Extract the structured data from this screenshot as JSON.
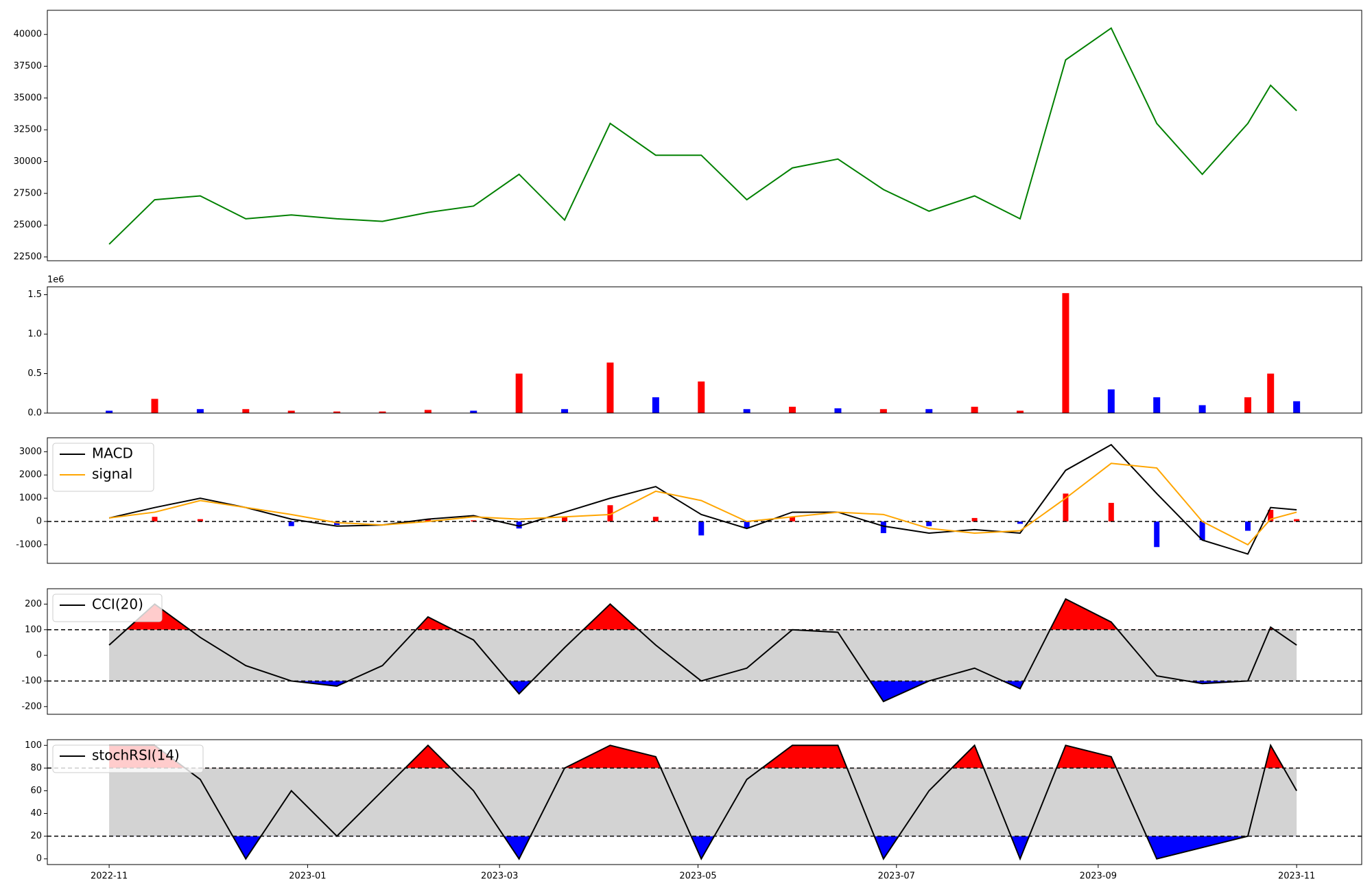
{
  "chart_data": [
    {
      "type": "line",
      "x": [
        "2022-11-01",
        "2022-11-15",
        "2022-11-29",
        "2022-12-13",
        "2022-12-27",
        "2023-01-10",
        "2023-01-24",
        "2023-02-07",
        "2023-02-21",
        "2023-03-07",
        "2023-03-21",
        "2023-04-04",
        "2023-04-18",
        "2023-05-02",
        "2023-05-16",
        "2023-05-30",
        "2023-06-13",
        "2023-06-27",
        "2023-07-11",
        "2023-07-25",
        "2023-08-08",
        "2023-08-22",
        "2023-09-05",
        "2023-09-19",
        "2023-10-03",
        "2023-10-17",
        "2023-10-24",
        "2023-11-01"
      ],
      "xlim": [
        "2022-10-13",
        "2023-11-21"
      ],
      "series": [
        {
          "name": "close",
          "color": "#008000",
          "values": [
            23500,
            27000,
            27300,
            25500,
            25800,
            25500,
            25300,
            26000,
            26500,
            29000,
            25400,
            33000,
            30500,
            30500,
            27000,
            29500,
            30200,
            27800,
            26100,
            27300,
            25500,
            38000,
            40500,
            33000,
            29000,
            33000,
            36000,
            34000
          ]
        }
      ],
      "ylim": [
        22200,
        41900
      ],
      "yticks": [
        22500,
        25000,
        27500,
        30000,
        32500,
        35000,
        37500,
        40000
      ]
    },
    {
      "type": "bar",
      "x": [
        "2022-11-01",
        "2022-11-15",
        "2022-11-29",
        "2022-12-13",
        "2022-12-27",
        "2023-01-10",
        "2023-01-24",
        "2023-02-07",
        "2023-02-21",
        "2023-03-07",
        "2023-03-21",
        "2023-04-04",
        "2023-04-18",
        "2023-05-02",
        "2023-05-16",
        "2023-05-30",
        "2023-06-13",
        "2023-06-27",
        "2023-07-11",
        "2023-07-25",
        "2023-08-08",
        "2023-08-22",
        "2023-09-05",
        "2023-09-19",
        "2023-10-03",
        "2023-10-17",
        "2023-10-24",
        "2023-11-01"
      ],
      "xlim": [
        "2022-10-13",
        "2023-11-21"
      ],
      "values": [
        0.03,
        0.18,
        0.05,
        0.05,
        0.03,
        0.02,
        0.02,
        0.04,
        0.03,
        0.5,
        0.05,
        0.64,
        0.2,
        0.4,
        0.05,
        0.08,
        0.06,
        0.05,
        0.05,
        0.08,
        0.03,
        1.52,
        0.3,
        0.2,
        0.1,
        0.2,
        0.5,
        0.15
      ],
      "bar_colors": [
        "#0000ff",
        "#ff0000",
        "#0000ff",
        "#ff0000",
        "#ff0000",
        "#ff0000",
        "#ff0000",
        "#ff0000",
        "#0000ff",
        "#ff0000",
        "#0000ff",
        "#ff0000",
        "#0000ff",
        "#ff0000",
        "#0000ff",
        "#ff0000",
        "#0000ff",
        "#ff0000",
        "#0000ff",
        "#ff0000",
        "#ff0000",
        "#ff0000",
        "#0000ff",
        "#0000ff",
        "#0000ff",
        "#ff0000",
        "#ff0000",
        "#0000ff"
      ],
      "offset_label": "1e6",
      "ylim": [
        0,
        1.6
      ],
      "yticks": [
        {
          "value": 0,
          "label": "0.0"
        },
        {
          "value": 0.5,
          "label": "0.5"
        },
        {
          "value": 1,
          "label": "1.0"
        },
        {
          "value": 1.5,
          "label": "1.5"
        }
      ]
    },
    {
      "type": "macd",
      "x": [
        "2022-11-01",
        "2022-11-15",
        "2022-11-29",
        "2022-12-13",
        "2022-12-27",
        "2023-01-10",
        "2023-01-24",
        "2023-02-07",
        "2023-02-21",
        "2023-03-07",
        "2023-03-21",
        "2023-04-04",
        "2023-04-18",
        "2023-05-02",
        "2023-05-16",
        "2023-05-30",
        "2023-06-13",
        "2023-06-27",
        "2023-07-11",
        "2023-07-25",
        "2023-08-08",
        "2023-08-22",
        "2023-09-05",
        "2023-09-19",
        "2023-10-03",
        "2023-10-17",
        "2023-10-24",
        "2023-11-01"
      ],
      "xlim": [
        "2022-10-13",
        "2023-11-21"
      ],
      "series": [
        {
          "name": "MACD",
          "color": "#000000",
          "values": [
            150,
            600,
            1000,
            600,
            100,
            -200,
            -150,
            100,
            250,
            -200,
            400,
            1000,
            1500,
            300,
            -300,
            400,
            400,
            -200,
            -500,
            -350,
            -500,
            2200,
            3300,
            1200,
            -800,
            -1400,
            600,
            500
          ]
        },
        {
          "name": "signal",
          "color": "#ffa500",
          "values": [
            150,
            400,
            900,
            600,
            300,
            -50,
            -150,
            0,
            200,
            100,
            200,
            300,
            1300,
            900,
            0,
            200,
            400,
            300,
            -300,
            -500,
            -400,
            1000,
            2500,
            2300,
            0,
            -1000,
            100,
            400
          ]
        }
      ],
      "histogram": [
        0,
        200,
        100,
        0,
        -200,
        -150,
        0,
        100,
        50,
        -300,
        200,
        700,
        200,
        -600,
        -300,
        200,
        0,
        -500,
        -200,
        150,
        -100,
        1200,
        800,
        -1100,
        -800,
        -400,
        500,
        100
      ],
      "pos_color": "#ff0000",
      "neg_color": "#0000ff",
      "zero_line": 0,
      "ylim": [
        -1800,
        3600
      ],
      "yticks": [
        -1000,
        0,
        1000,
        2000,
        3000
      ]
    },
    {
      "type": "oscillator",
      "x": [
        "2022-11-01",
        "2022-11-15",
        "2022-11-29",
        "2022-12-13",
        "2022-12-27",
        "2023-01-10",
        "2023-01-24",
        "2023-02-07",
        "2023-02-21",
        "2023-03-07",
        "2023-03-21",
        "2023-04-04",
        "2023-04-18",
        "2023-05-02",
        "2023-05-16",
        "2023-05-30",
        "2023-06-13",
        "2023-06-27",
        "2023-07-11",
        "2023-07-25",
        "2023-08-08",
        "2023-08-22",
        "2023-09-05",
        "2023-09-19",
        "2023-10-03",
        "2023-10-17",
        "2023-10-24",
        "2023-11-01"
      ],
      "xlim": [
        "2022-10-13",
        "2023-11-21"
      ],
      "series": [
        {
          "name": "CCI(20)",
          "color": "#000000",
          "values": [
            40,
            200,
            70,
            -40,
            -100,
            -120,
            -40,
            150,
            60,
            -150,
            30,
            200,
            40,
            -100,
            -50,
            100,
            90,
            -180,
            -100,
            -50,
            -130,
            220,
            130,
            -80,
            -110,
            -100,
            110,
            40
          ]
        }
      ],
      "upper": 100,
      "lower": -100,
      "upper_color": "#ff0000",
      "lower_color": "#0000ff",
      "band_color": "#d3d3d3",
      "ylim": [
        -230,
        260
      ],
      "yticks": [
        -200,
        -100,
        0,
        100,
        200
      ]
    },
    {
      "type": "oscillator",
      "x": [
        "2022-11-01",
        "2022-11-15",
        "2022-11-29",
        "2022-12-13",
        "2022-12-27",
        "2023-01-10",
        "2023-01-24",
        "2023-02-07",
        "2023-02-21",
        "2023-03-07",
        "2023-03-21",
        "2023-04-04",
        "2023-04-18",
        "2023-05-02",
        "2023-05-16",
        "2023-05-30",
        "2023-06-13",
        "2023-06-27",
        "2023-07-11",
        "2023-07-25",
        "2023-08-08",
        "2023-08-22",
        "2023-09-05",
        "2023-09-19",
        "2023-10-03",
        "2023-10-17",
        "2023-10-24",
        "2023-11-01"
      ],
      "xlim": [
        "2022-10-13",
        "2023-11-21"
      ],
      "series": [
        {
          "name": "stochRSI(14)",
          "color": "#000000",
          "values": [
            100,
            100,
            70,
            0,
            60,
            20,
            60,
            100,
            60,
            0,
            80,
            100,
            90,
            0,
            70,
            100,
            100,
            0,
            60,
            100,
            0,
            100,
            90,
            0,
            10,
            20,
            100,
            60
          ]
        }
      ],
      "upper": 80,
      "lower": 20,
      "upper_color": "#ff0000",
      "lower_color": "#0000ff",
      "band_color": "#d3d3d3",
      "ylim": [
        -5,
        105
      ],
      "yticks": [
        0,
        20,
        40,
        60,
        80,
        100
      ],
      "xticks": [
        {
          "value": "2022-11-01",
          "label": "2022-11"
        },
        {
          "value": "2023-01-01",
          "label": "2023-01"
        },
        {
          "value": "2023-03-01",
          "label": "2023-03"
        },
        {
          "value": "2023-05-01",
          "label": "2023-05"
        },
        {
          "value": "2023-07-01",
          "label": "2023-07"
        },
        {
          "value": "2023-09-01",
          "label": "2023-09"
        },
        {
          "value": "2023-11-01",
          "label": "2023-11"
        }
      ]
    }
  ]
}
